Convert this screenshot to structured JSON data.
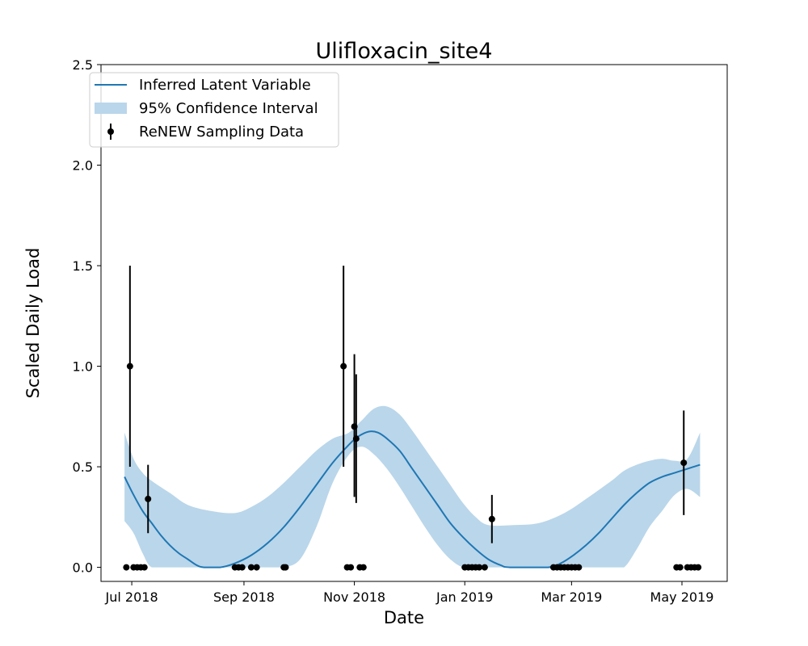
{
  "chart_data": {
    "type": "line",
    "title": "Ulifloxacin_site4",
    "xlabel": "Date",
    "ylabel": "Scaled Daily Load",
    "xlim": [
      "2018-06-14",
      "2019-05-26"
    ],
    "ylim": [
      -0.07,
      2.5
    ],
    "x_ticks": [
      {
        "date": "2018-07-01",
        "label": "Jul 2018"
      },
      {
        "date": "2018-09-01",
        "label": "Sep 2018"
      },
      {
        "date": "2018-11-01",
        "label": "Nov 2018"
      },
      {
        "date": "2019-01-01",
        "label": "Jan 2019"
      },
      {
        "date": "2019-03-01",
        "label": "Mar 2019"
      },
      {
        "date": "2019-05-01",
        "label": "May 2019"
      }
    ],
    "y_ticks": [
      {
        "value": 0.0,
        "label": "0.0"
      },
      {
        "value": 0.5,
        "label": "0.5"
      },
      {
        "value": 1.0,
        "label": "1.0"
      },
      {
        "value": 1.5,
        "label": "1.5"
      },
      {
        "value": 2.0,
        "label": "2.0"
      },
      {
        "value": 2.5,
        "label": "2.5"
      }
    ],
    "legend": {
      "placement": "top-left",
      "entries": [
        {
          "label": "Inferred Latent Variable",
          "kind": "line"
        },
        {
          "label": "95% Confidence Interval",
          "kind": "band"
        },
        {
          "label": "ReNEW Sampling Data",
          "kind": "errorbar"
        }
      ]
    },
    "colors": {
      "line": "#1f77b4",
      "band": "#bad6ea",
      "points": "#000000"
    },
    "series": [
      {
        "name": "Inferred Latent Variable",
        "kind": "line",
        "points": [
          {
            "x": "2018-06-27",
            "y": 0.45
          },
          {
            "x": "2018-07-02",
            "y": 0.36
          },
          {
            "x": "2018-07-07",
            "y": 0.28
          },
          {
            "x": "2018-07-12",
            "y": 0.22
          },
          {
            "x": "2018-07-17",
            "y": 0.16
          },
          {
            "x": "2018-07-22",
            "y": 0.11
          },
          {
            "x": "2018-07-27",
            "y": 0.07
          },
          {
            "x": "2018-08-01",
            "y": 0.04
          },
          {
            "x": "2018-08-06",
            "y": 0.01
          },
          {
            "x": "2018-08-10",
            "y": 0.0
          },
          {
            "x": "2018-08-19",
            "y": 0.0
          },
          {
            "x": "2018-08-27",
            "y": 0.02
          },
          {
            "x": "2018-09-05",
            "y": 0.06
          },
          {
            "x": "2018-09-14",
            "y": 0.12
          },
          {
            "x": "2018-09-23",
            "y": 0.2
          },
          {
            "x": "2018-10-02",
            "y": 0.3
          },
          {
            "x": "2018-10-11",
            "y": 0.41
          },
          {
            "x": "2018-10-20",
            "y": 0.52
          },
          {
            "x": "2018-10-29",
            "y": 0.61
          },
          {
            "x": "2018-11-03",
            "y": 0.65
          },
          {
            "x": "2018-11-09",
            "y": 0.675
          },
          {
            "x": "2018-11-14",
            "y": 0.67
          },
          {
            "x": "2018-11-19",
            "y": 0.64
          },
          {
            "x": "2018-11-26",
            "y": 0.58
          },
          {
            "x": "2018-12-03",
            "y": 0.49
          },
          {
            "x": "2018-12-10",
            "y": 0.4
          },
          {
            "x": "2018-12-17",
            "y": 0.31
          },
          {
            "x": "2018-12-24",
            "y": 0.22
          },
          {
            "x": "2018-12-31",
            "y": 0.15
          },
          {
            "x": "2019-01-07",
            "y": 0.09
          },
          {
            "x": "2019-01-14",
            "y": 0.04
          },
          {
            "x": "2019-01-21",
            "y": 0.01
          },
          {
            "x": "2019-01-26",
            "y": 0.0
          },
          {
            "x": "2019-02-16",
            "y": 0.0
          },
          {
            "x": "2019-02-23",
            "y": 0.02
          },
          {
            "x": "2019-03-02",
            "y": 0.06
          },
          {
            "x": "2019-03-09",
            "y": 0.11
          },
          {
            "x": "2019-03-16",
            "y": 0.17
          },
          {
            "x": "2019-03-23",
            "y": 0.24
          },
          {
            "x": "2019-03-30",
            "y": 0.31
          },
          {
            "x": "2019-04-06",
            "y": 0.37
          },
          {
            "x": "2019-04-13",
            "y": 0.42
          },
          {
            "x": "2019-04-20",
            "y": 0.45
          },
          {
            "x": "2019-04-27",
            "y": 0.47
          },
          {
            "x": "2019-05-04",
            "y": 0.49
          },
          {
            "x": "2019-05-11",
            "y": 0.51
          }
        ]
      },
      {
        "name": "95% Confidence Interval",
        "kind": "band",
        "points": [
          {
            "x": "2018-06-27",
            "low": 0.23,
            "high": 0.67
          },
          {
            "x": "2018-07-02",
            "low": 0.17,
            "high": 0.54
          },
          {
            "x": "2018-07-07",
            "low": 0.07,
            "high": 0.47
          },
          {
            "x": "2018-07-12",
            "low": 0.0,
            "high": 0.43
          },
          {
            "x": "2018-07-22",
            "low": 0.0,
            "high": 0.37
          },
          {
            "x": "2018-08-01",
            "low": 0.0,
            "high": 0.31
          },
          {
            "x": "2018-08-14",
            "low": 0.0,
            "high": 0.28
          },
          {
            "x": "2018-08-27",
            "low": 0.0,
            "high": 0.27
          },
          {
            "x": "2018-09-05",
            "low": 0.0,
            "high": 0.3
          },
          {
            "x": "2018-09-14",
            "low": 0.0,
            "high": 0.35
          },
          {
            "x": "2018-09-23",
            "low": 0.0,
            "high": 0.42
          },
          {
            "x": "2018-10-02",
            "low": 0.04,
            "high": 0.5
          },
          {
            "x": "2018-10-11",
            "low": 0.2,
            "high": 0.58
          },
          {
            "x": "2018-10-20",
            "low": 0.42,
            "high": 0.64
          },
          {
            "x": "2018-10-29",
            "low": 0.56,
            "high": 0.67
          },
          {
            "x": "2018-11-05",
            "low": 0.6,
            "high": 0.73
          },
          {
            "x": "2018-11-12",
            "low": 0.56,
            "high": 0.79
          },
          {
            "x": "2018-11-19",
            "low": 0.49,
            "high": 0.8
          },
          {
            "x": "2018-11-26",
            "low": 0.4,
            "high": 0.76
          },
          {
            "x": "2018-12-03",
            "low": 0.3,
            "high": 0.68
          },
          {
            "x": "2018-12-10",
            "low": 0.2,
            "high": 0.59
          },
          {
            "x": "2018-12-17",
            "low": 0.11,
            "high": 0.5
          },
          {
            "x": "2018-12-24",
            "low": 0.04,
            "high": 0.41
          },
          {
            "x": "2018-12-31",
            "low": 0.0,
            "high": 0.32
          },
          {
            "x": "2019-01-07",
            "low": 0.0,
            "high": 0.25
          },
          {
            "x": "2019-01-14",
            "low": 0.0,
            "high": 0.21
          },
          {
            "x": "2019-01-28",
            "low": 0.0,
            "high": 0.21
          },
          {
            "x": "2019-02-11",
            "low": 0.0,
            "high": 0.22
          },
          {
            "x": "2019-02-25",
            "low": 0.0,
            "high": 0.27
          },
          {
            "x": "2019-03-09",
            "low": 0.0,
            "high": 0.34
          },
          {
            "x": "2019-03-23",
            "low": 0.0,
            "high": 0.43
          },
          {
            "x": "2019-03-30",
            "low": 0.0,
            "high": 0.48
          },
          {
            "x": "2019-04-06",
            "low": 0.09,
            "high": 0.51
          },
          {
            "x": "2019-04-13",
            "low": 0.2,
            "high": 0.53
          },
          {
            "x": "2019-04-20",
            "low": 0.28,
            "high": 0.54
          },
          {
            "x": "2019-04-27",
            "low": 0.36,
            "high": 0.53
          },
          {
            "x": "2019-05-04",
            "low": 0.39,
            "high": 0.54
          },
          {
            "x": "2019-05-11",
            "low": 0.35,
            "high": 0.67
          }
        ]
      },
      {
        "name": "ReNEW Sampling Data",
        "kind": "errorbar",
        "points": [
          {
            "x": "2018-06-28",
            "y": 0.0
          },
          {
            "x": "2018-06-30",
            "y": 1.0,
            "low": 0.5,
            "high": 1.5
          },
          {
            "x": "2018-07-02",
            "y": 0.0
          },
          {
            "x": "2018-07-04",
            "y": 0.0
          },
          {
            "x": "2018-07-06",
            "y": 0.0
          },
          {
            "x": "2018-07-08",
            "y": 0.0
          },
          {
            "x": "2018-07-10",
            "y": 0.34,
            "low": 0.17,
            "high": 0.51
          },
          {
            "x": "2018-08-27",
            "y": 0.0
          },
          {
            "x": "2018-08-29",
            "y": 0.0
          },
          {
            "x": "2018-08-31",
            "y": 0.0
          },
          {
            "x": "2018-09-05",
            "y": 0.0
          },
          {
            "x": "2018-09-08",
            "y": 0.0
          },
          {
            "x": "2018-09-23",
            "y": 0.0
          },
          {
            "x": "2018-09-24",
            "y": 0.0
          },
          {
            "x": "2018-10-26",
            "y": 1.0,
            "low": 0.5,
            "high": 1.5
          },
          {
            "x": "2018-10-28",
            "y": 0.0
          },
          {
            "x": "2018-10-30",
            "y": 0.0
          },
          {
            "x": "2018-11-01",
            "y": 0.7,
            "low": 0.35,
            "high": 1.06
          },
          {
            "x": "2018-11-02",
            "y": 0.64,
            "low": 0.32,
            "high": 0.96
          },
          {
            "x": "2018-11-04",
            "y": 0.0
          },
          {
            "x": "2018-11-06",
            "y": 0.0
          },
          {
            "x": "2019-01-01",
            "y": 0.0
          },
          {
            "x": "2019-01-03",
            "y": 0.0
          },
          {
            "x": "2019-01-05",
            "y": 0.0
          },
          {
            "x": "2019-01-07",
            "y": 0.0
          },
          {
            "x": "2019-01-09",
            "y": 0.0
          },
          {
            "x": "2019-01-12",
            "y": 0.0
          },
          {
            "x": "2019-01-16",
            "y": 0.24,
            "low": 0.12,
            "high": 0.36
          },
          {
            "x": "2019-02-19",
            "y": 0.0
          },
          {
            "x": "2019-02-21",
            "y": 0.0
          },
          {
            "x": "2019-02-23",
            "y": 0.0
          },
          {
            "x": "2019-02-25",
            "y": 0.0
          },
          {
            "x": "2019-02-27",
            "y": 0.0
          },
          {
            "x": "2019-03-01",
            "y": 0.0
          },
          {
            "x": "2019-03-03",
            "y": 0.0
          },
          {
            "x": "2019-03-05",
            "y": 0.0
          },
          {
            "x": "2019-04-28",
            "y": 0.0
          },
          {
            "x": "2019-04-30",
            "y": 0.0
          },
          {
            "x": "2019-05-02",
            "y": 0.52,
            "low": 0.26,
            "high": 0.78
          },
          {
            "x": "2019-05-04",
            "y": 0.0
          },
          {
            "x": "2019-05-06",
            "y": 0.0
          },
          {
            "x": "2019-05-08",
            "y": 0.0
          },
          {
            "x": "2019-05-10",
            "y": 0.0
          }
        ]
      }
    ]
  }
}
